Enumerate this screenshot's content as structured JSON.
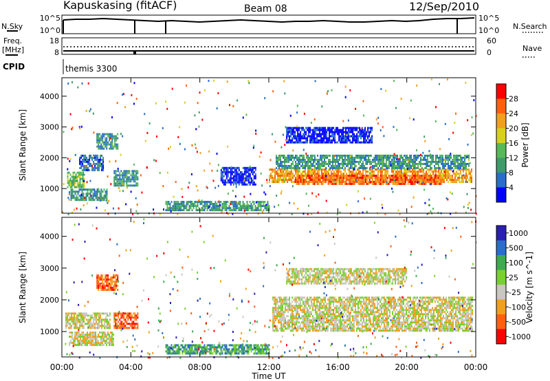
{
  "header": {
    "station": "Kapuskasing (fitACF)",
    "beam": "Beam 08",
    "date": "12/Sep/2010"
  },
  "panels": {
    "nsky": {
      "left_label": "N.Sky",
      "ticks": [
        "10^5",
        "10^0"
      ],
      "right_ticks": [
        "10^5",
        "10^0"
      ],
      "right_label": "N.Search"
    },
    "freq": {
      "left_label": "Freq.",
      "unit": "[MHz]",
      "ticks": [
        "18",
        "8"
      ],
      "right_ticks": [
        "60",
        "0"
      ],
      "right_label": "Nave"
    },
    "cpid": {
      "left_label": "CPID",
      "value": "themis 3300"
    }
  },
  "colors": {
    "power": [
      "#0000ff",
      "#2a6ec8",
      "#3f9a6a",
      "#57b85a",
      "#d8d020",
      "#f0a020",
      "#ff6010",
      "#ff0000"
    ],
    "velocity": [
      "#2a1fb0",
      "#2a6ec8",
      "#3faa50",
      "#7ad030",
      "#c8c8c0",
      "#f0a020",
      "#ff6010",
      "#ff0000"
    ],
    "ground_scatter": "#c8c8c0"
  },
  "chart_data": [
    {
      "type": "heatmap",
      "title": "",
      "ylabel": "Slant Range [km]",
      "xlabel": "",
      "x_ticks": [
        "00:00",
        "04:00",
        "08:00",
        "12:00",
        "16:00",
        "20:00",
        "00:00"
      ],
      "y_ticks": [
        "1000",
        "2000",
        "3000",
        "4000"
      ],
      "ylim": [
        200,
        4600
      ],
      "xlim_hours": [
        0,
        24
      ],
      "colorbar": {
        "label": "Power [dB]",
        "ticks": [
          "4",
          "8",
          "12",
          "16",
          "20",
          "24",
          "28"
        ]
      },
      "regions": [
        {
          "t": [
            0.3,
            1.3
          ],
          "r": [
            1050,
            1550
          ],
          "level": 3
        },
        {
          "t": [
            0.5,
            2.6
          ],
          "r": [
            600,
            1000
          ],
          "level": 2
        },
        {
          "t": [
            1.0,
            2.4
          ],
          "r": [
            1600,
            2100
          ],
          "level": 1
        },
        {
          "t": [
            2.0,
            3.2
          ],
          "r": [
            2300,
            2800
          ],
          "level": 2
        },
        {
          "t": [
            3.0,
            4.4
          ],
          "r": [
            1100,
            1600
          ],
          "level": 2
        },
        {
          "t": [
            9.2,
            11.2
          ],
          "r": [
            1100,
            1700
          ],
          "level": 0
        },
        {
          "t": [
            12.0,
            23.8
          ],
          "r": [
            1200,
            1650
          ],
          "level": 5
        },
        {
          "t": [
            13.5,
            22.0
          ],
          "r": [
            1150,
            1450
          ],
          "level": 6
        },
        {
          "t": [
            12.4,
            23.6
          ],
          "r": [
            1650,
            2100
          ],
          "level": 2
        },
        {
          "t": [
            13.0,
            18.0
          ],
          "r": [
            2500,
            3000
          ],
          "level": 0
        },
        {
          "t": [
            6.0,
            12.0
          ],
          "r": [
            300,
            600
          ],
          "level": 2
        }
      ]
    },
    {
      "type": "heatmap",
      "title": "",
      "ylabel": "Slant Range [km]",
      "xlabel": "Time UT",
      "x_ticks": [
        "00:00",
        "04:00",
        "08:00",
        "12:00",
        "16:00",
        "20:00",
        "00:00"
      ],
      "y_ticks": [
        "1000",
        "2000",
        "3000",
        "4000"
      ],
      "ylim": [
        200,
        4600
      ],
      "xlim_hours": [
        0,
        24
      ],
      "colorbar": {
        "label": "Velocity [m s^-1]",
        "ticks": [
          "1000",
          "500",
          "100",
          "25",
          "-25",
          "-100",
          "-500",
          "-1000"
        ]
      },
      "regions": [
        {
          "t": [
            0.2,
            2.8
          ],
          "r": [
            1100,
            1600
          ],
          "level": 4
        },
        {
          "t": [
            0.4,
            3.0
          ],
          "r": [
            600,
            1000
          ],
          "level": 4
        },
        {
          "t": [
            2.0,
            3.2
          ],
          "r": [
            2300,
            2800
          ],
          "level": 6
        },
        {
          "t": [
            3.0,
            4.4
          ],
          "r": [
            1100,
            1600
          ],
          "level": 6
        },
        {
          "t": [
            12.2,
            23.8
          ],
          "r": [
            1000,
            2100
          ],
          "level": 4
        },
        {
          "t": [
            13.0,
            20.0
          ],
          "r": [
            2500,
            3000
          ],
          "level": 4
        },
        {
          "t": [
            6.0,
            12.0
          ],
          "r": [
            300,
            600
          ],
          "level": 2
        }
      ]
    }
  ]
}
